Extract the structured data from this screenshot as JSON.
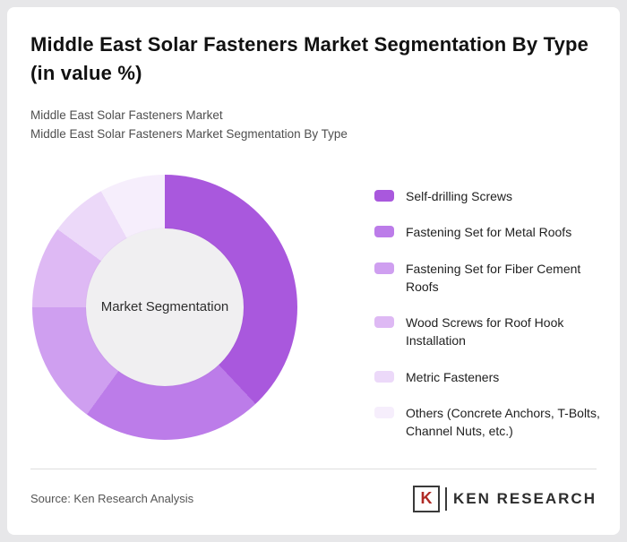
{
  "header": {
    "title": "Middle East Solar Fasteners Market Segmentation By Type (in value %)",
    "subtitle1": "Middle East Solar Fasteners Market",
    "subtitle2": "Middle East Solar Fasteners Market Segmentation By Type"
  },
  "chart_data": {
    "type": "pie",
    "subtype": "donut",
    "title": "Middle East Solar Fasteners Market Segmentation By Type (in value %)",
    "center_label": "Market Segmentation",
    "categories": [
      "Self-drilling Screws",
      "Fastening Set for Metal Roofs",
      "Fastening Set for Fiber Cement Roofs",
      "Wood Screws for Roof Hook Installation",
      "Metric Fasteners",
      "Others (Concrete Anchors, T-Bolts, Channel Nuts, etc.)"
    ],
    "values": [
      38,
      22,
      15,
      10,
      7,
      8
    ],
    "unit": "%",
    "colors": [
      "#a958dd",
      "#bc7ce9",
      "#cf9ff0",
      "#deb9f4",
      "#ecd9f9",
      "#f6eefc"
    ],
    "legend_position": "right",
    "start_angle_deg": 0,
    "direction": "clockwise"
  },
  "footer": {
    "source": "Source: Ken Research Analysis",
    "logo_initial": "K",
    "logo_text": "KEN RESEARCH"
  }
}
